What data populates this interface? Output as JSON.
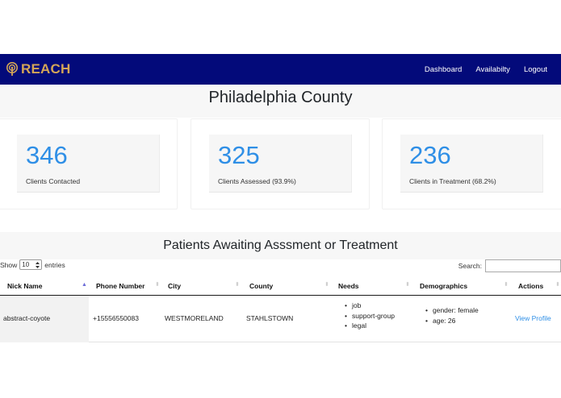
{
  "navbar": {
    "brand": "REACH",
    "links": [
      "Dashboard",
      "Availabilty",
      "Logout"
    ],
    "bg_color": "#030a7a",
    "brand_color": "#d4a657"
  },
  "county": {
    "title": "Philadelphia County"
  },
  "stats": [
    {
      "value": "346",
      "label": "Clients Contacted"
    },
    {
      "value": "325",
      "label": "Clients Assessed (93.9%)"
    },
    {
      "value": "236",
      "label": "Clients in Treatment (68.2%)"
    }
  ],
  "stat_color": "#2f8fe6",
  "table": {
    "title": "Patients Awaiting Asssment or Treatment",
    "show_label": "Show",
    "entries_value": "10",
    "entries_label": "entries",
    "search_label": "Search:",
    "search_value": "",
    "columns": [
      "Nick Name",
      "Phone Number",
      "City",
      "County",
      "Needs",
      "Demographics",
      "Actions"
    ],
    "rows": [
      {
        "nick_name": "abstract-coyote",
        "phone": "+15556550083",
        "city": "WESTMORELAND",
        "county": "STAHLSTOWN",
        "needs": [
          "job",
          "support-group",
          "legal"
        ],
        "demographics": [
          "gender: female",
          "age: 26"
        ],
        "action": "View Profile"
      }
    ]
  }
}
